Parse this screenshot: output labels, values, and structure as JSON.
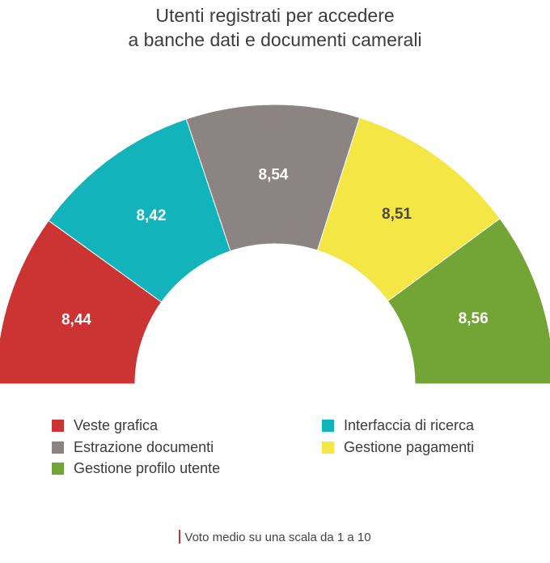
{
  "title_lines": [
    "Utenti registrati per accedere",
    "a banche dati e documenti camerali"
  ],
  "chart_data": {
    "type": "pie",
    "variant": "semicircle-donut",
    "title": "Utenti registrati per accedere a banche dati e documenti camerali",
    "categories": [
      "Veste grafica",
      "Interfaccia di ricerca",
      "Estrazione documenti",
      "Gestione pagamenti",
      "Gestione profilo utente"
    ],
    "values": [
      8.44,
      8.42,
      8.54,
      8.51,
      8.56
    ],
    "labels": [
      "8,44",
      "8,42",
      "8,54",
      "8,51",
      "8,56"
    ],
    "colors": [
      "#cc3333",
      "#12b3bb",
      "#8c8483",
      "#f3e645",
      "#72a436"
    ],
    "label_colors": [
      "#ffffff",
      "#ffffff",
      "#ffffff",
      "#4a4a4a",
      "#ffffff"
    ],
    "legend_placement": "bottom"
  },
  "legend": [
    {
      "label": "Veste grafica",
      "color": "#cc3333"
    },
    {
      "label": "Interfaccia di ricerca",
      "color": "#12b3bb"
    },
    {
      "label": "Estrazione documenti",
      "color": "#8c8483"
    },
    {
      "label": "Gestione pagamenti",
      "color": "#f3e645"
    },
    {
      "label": "Gestione profilo utente",
      "color": "#72a436"
    }
  ],
  "footnote": "Voto medio su una scala da 1 a 10",
  "footnote_marker_color": "#c8323a"
}
